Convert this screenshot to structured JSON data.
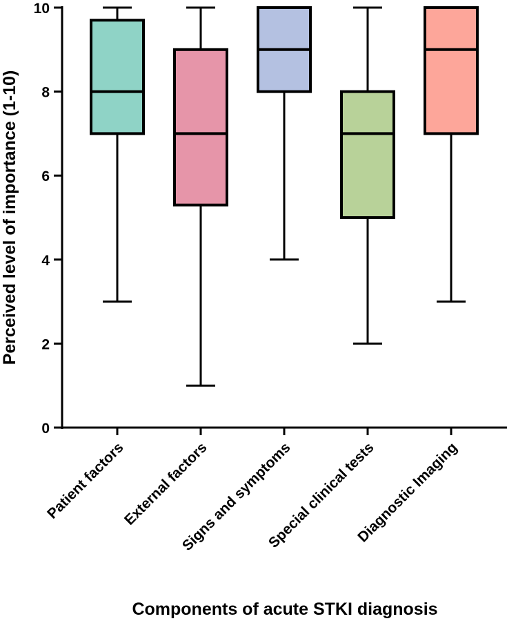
{
  "chart_data": {
    "type": "boxplot",
    "xlabel": "Components of acute STKI diagnosis",
    "ylabel": "Perceived level of importance (1-10)",
    "ylim": [
      0,
      10
    ],
    "yticks": [
      0,
      2,
      4,
      6,
      8,
      10
    ],
    "grid": false,
    "categories": [
      "Patient factors",
      "External factors",
      "Signs and symptoms",
      "Special clinical tests",
      "Diagnostic Imaging"
    ],
    "boxes": [
      {
        "min": 3,
        "q1": 7,
        "median": 8,
        "q3": 9.7,
        "max": 10,
        "color": "#8fd3c6"
      },
      {
        "min": 1,
        "q1": 5.3,
        "median": 7,
        "q3": 9,
        "max": 10,
        "color": "#e695a9"
      },
      {
        "min": 4,
        "q1": 8,
        "median": 9,
        "q3": 10,
        "max": 10,
        "color": "#b4c1e1"
      },
      {
        "min": 2,
        "q1": 5,
        "median": 7,
        "q3": 8,
        "max": 10,
        "color": "#b8d299"
      },
      {
        "min": 3,
        "q1": 7,
        "median": 9,
        "q3": 10,
        "max": 10,
        "color": "#fda69a"
      }
    ]
  }
}
